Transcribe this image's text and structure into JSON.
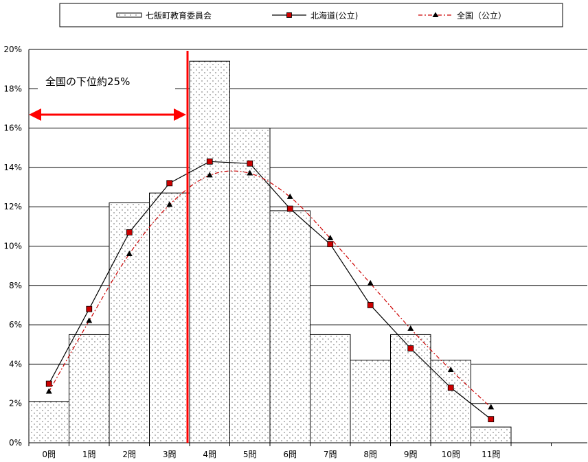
{
  "chart_data": {
    "type": "bar",
    "categories": [
      "0問",
      "1問",
      "2問",
      "3問",
      "4問",
      "5問",
      "6問",
      "7問",
      "8問",
      "9問",
      "10問",
      "11問"
    ],
    "series": [
      {
        "name": "七飯町教育委員会",
        "kind": "bar",
        "values": [
          2.1,
          5.5,
          12.2,
          12.7,
          19.4,
          16.0,
          11.8,
          5.5,
          4.2,
          5.5,
          4.2,
          0.8
        ]
      },
      {
        "name": "北海道(公立)",
        "kind": "line",
        "color": "#000000",
        "marker_color": "#cc0000",
        "values": [
          3.0,
          6.8,
          10.7,
          13.2,
          14.3,
          14.2,
          11.9,
          10.1,
          7.0,
          4.8,
          2.8,
          1.2
        ]
      },
      {
        "name": "全国（公立）",
        "kind": "line",
        "color": "#cc0000",
        "marker_color": "#000000",
        "values": [
          2.6,
          6.2,
          9.6,
          12.1,
          13.6,
          13.7,
          12.5,
          10.4,
          8.1,
          5.8,
          3.7,
          1.8
        ]
      }
    ],
    "yticks": [
      "0%",
      "2%",
      "4%",
      "6%",
      "8%",
      "10%",
      "12%",
      "14%",
      "16%",
      "18%",
      "20%"
    ],
    "ylim": [
      0,
      20
    ],
    "grid": true,
    "legend_position": "top",
    "annotation": {
      "text": "全国の下位約25%",
      "color": "#ff0000",
      "cutoff_between": [
        "3問",
        "4問"
      ]
    }
  }
}
